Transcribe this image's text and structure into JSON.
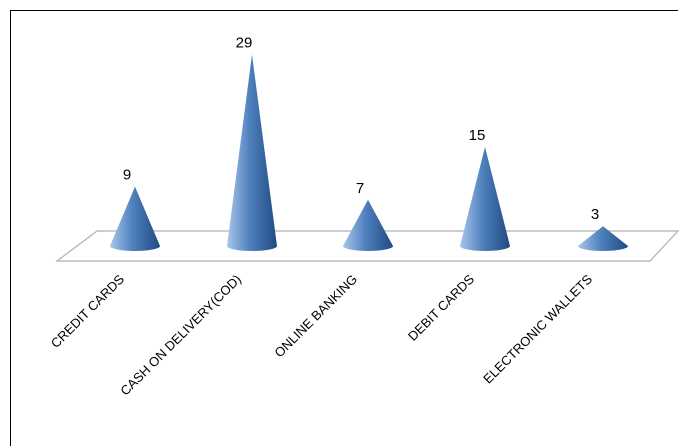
{
  "chart_data": {
    "type": "bar",
    "shape": "cone",
    "categories": [
      "CREDIT CARDS",
      "CASH ON DELIVERY(COD)",
      "ONLINE BANKING",
      "DEBIT CARDS",
      "ELECTRONIC WALLETS"
    ],
    "values": [
      9,
      29,
      7,
      15,
      3
    ],
    "data_labels": [
      "9",
      "29",
      "7",
      "15",
      "3"
    ],
    "title": "",
    "xlabel": "",
    "ylabel": "",
    "ylim": [
      0,
      30
    ],
    "grid": false,
    "legend": "none",
    "colors": {
      "cone_light": "#a9c6ec",
      "cone_mid": "#4f81bd",
      "cone_dark": "#1f4a84",
      "floor_stroke": "#b0b0b0",
      "floor_fill": "#ffffff"
    }
  }
}
